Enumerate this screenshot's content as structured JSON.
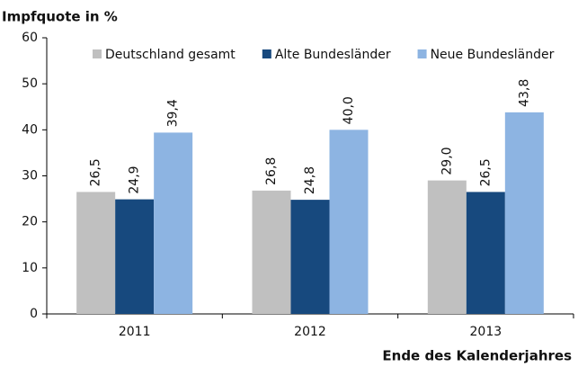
{
  "chart_data": {
    "type": "bar",
    "y_axis_label": "Impfquote in %",
    "x_axis_label": "Ende des Kalenderjahres",
    "categories": [
      "2011",
      "2012",
      "2013"
    ],
    "series": [
      {
        "name": "Deutschland gesamt",
        "color": "#c0c0c0",
        "values": [
          26.5,
          26.8,
          29.0
        ],
        "value_labels": [
          "26,5",
          "26,8",
          "29,0"
        ]
      },
      {
        "name": "Alte Bundesländer",
        "color": "#17497e",
        "values": [
          24.9,
          24.8,
          26.5
        ],
        "value_labels": [
          "24,9",
          "24,8",
          "26,5"
        ]
      },
      {
        "name": "Neue Bundesländer",
        "color": "#8db4e2",
        "values": [
          39.4,
          40.0,
          43.8
        ],
        "value_labels": [
          "39,4",
          "40,0",
          "43,8"
        ]
      }
    ],
    "ylim": [
      0,
      60
    ],
    "yticks": [
      0,
      10,
      20,
      30,
      40,
      50,
      60
    ],
    "legend": "top"
  }
}
